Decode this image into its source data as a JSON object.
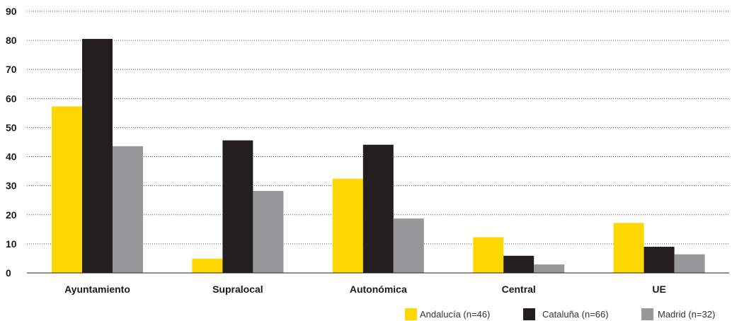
{
  "chart_data": {
    "type": "bar",
    "title": "",
    "xlabel": "",
    "ylabel": "",
    "categories": [
      "Ayuntamiento",
      "Supralocal",
      "Autonómica",
      "Central",
      "UE"
    ],
    "series": [
      {
        "name": "Andalucía (n=46)",
        "color": "#FFD700",
        "values": [
          57.3,
          4.9,
          32.4,
          12.3,
          17.2
        ]
      },
      {
        "name": "Cataluña (n=66)",
        "color": "#231F20",
        "values": [
          80.5,
          45.6,
          44.1,
          5.9,
          9.0
        ]
      },
      {
        "name": "Madrid (n=32)",
        "color": "#97979A",
        "values": [
          43.6,
          28.2,
          18.7,
          2.9,
          6.4
        ]
      }
    ],
    "ylim": [
      0,
      90
    ],
    "yticks": [
      "0",
      "10",
      "20",
      "30",
      "40",
      "50",
      "60",
      "70",
      "80",
      "90"
    ],
    "grid": true,
    "legend_position": "bottom-right"
  }
}
